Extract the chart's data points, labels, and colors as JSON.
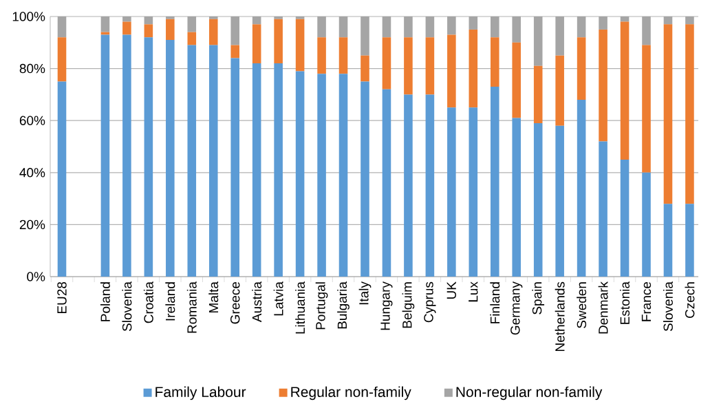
{
  "chart_data": {
    "type": "bar",
    "stacked": true,
    "categories": [
      "EU28",
      null,
      "Poland",
      "Slovenia",
      "Croatia",
      "Ireland",
      "Romania",
      "Malta",
      "Greece",
      "Austria",
      "Latvia",
      "Lithuania",
      "Portugal",
      "Bulgaria",
      "Italy",
      "Hungary",
      "Belguim",
      "Cyprus",
      "UK",
      "Lux",
      "Finland",
      "Germany",
      "Spain",
      "Netherlands",
      "Sweden",
      "Denmark",
      "Estonia",
      "France",
      "Slovenia",
      "Czech"
    ],
    "series": [
      {
        "name": "Family Labour",
        "color": "#5b9bd5",
        "values": [
          75,
          null,
          93,
          93,
          92,
          91,
          89,
          89,
          84,
          82,
          82,
          79,
          78,
          78,
          75,
          72,
          70,
          70,
          65,
          65,
          73,
          61,
          59,
          58,
          68,
          52,
          45,
          40,
          28,
          28
        ]
      },
      {
        "name": "Regular non-family",
        "color": "#ed7d31",
        "values": [
          17,
          null,
          1,
          5,
          5,
          8,
          5,
          10,
          5,
          15,
          17,
          20,
          14,
          14,
          10,
          20,
          22,
          22,
          28,
          30,
          19,
          29,
          22,
          27,
          24,
          43,
          53,
          49,
          69,
          69
        ]
      },
      {
        "name": "Non-regular non-family",
        "color": "#a5a5a5",
        "values": [
          8,
          null,
          6,
          2,
          3,
          1,
          6,
          1,
          11,
          3,
          1,
          1,
          8,
          8,
          15,
          8,
          8,
          8,
          7,
          5,
          8,
          10,
          19,
          15,
          8,
          5,
          2,
          11,
          3,
          3
        ]
      }
    ],
    "ylim": [
      0,
      100
    ],
    "yticks": [
      {
        "value": 0,
        "label": "0%"
      },
      {
        "value": 20,
        "label": "20%"
      },
      {
        "value": 40,
        "label": "40%"
      },
      {
        "value": 60,
        "label": "60%"
      },
      {
        "value": 80,
        "label": "80%"
      },
      {
        "value": 100,
        "label": "100%"
      }
    ],
    "grid": "y",
    "legend": "bottom"
  }
}
